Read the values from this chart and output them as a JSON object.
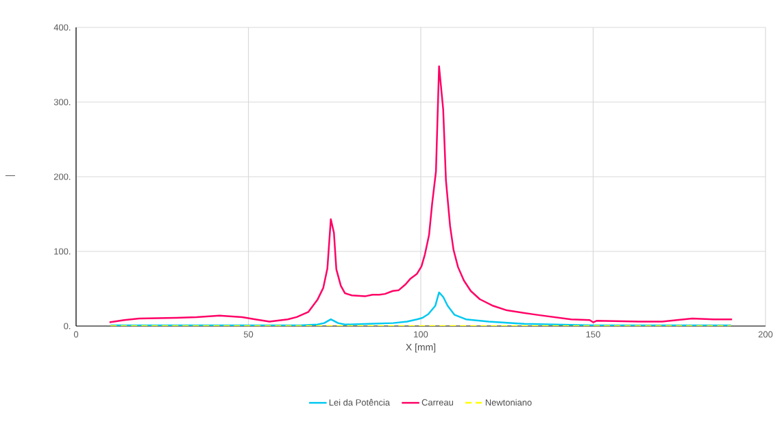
{
  "chart_data": {
    "type": "line",
    "xlabel": "X [mm]",
    "ylabel": "—",
    "xlim": [
      0,
      200
    ],
    "xticks": [
      0,
      50,
      100,
      150,
      200
    ],
    "ylim": [
      0,
      400
    ],
    "yticks": [
      {
        "value": 0,
        "label": "0."
      },
      {
        "value": 100,
        "label": "100."
      },
      {
        "value": 200,
        "label": "200."
      },
      {
        "value": 300,
        "label": "300."
      },
      {
        "value": 400,
        "label": "400."
      }
    ],
    "grid": true,
    "legend": "bottom",
    "marker": "none",
    "series": [
      {
        "name": "Lei da Potência",
        "color": "#00c8f0",
        "line_style": "solid",
        "x": [
          10,
          30,
          50,
          65,
          70,
          72,
          73.9,
          76,
          78,
          85,
          92,
          96,
          98.9,
          100.5,
          102.2,
          104.2,
          105.3,
          106.5,
          107.8,
          109.8,
          113.1,
          119.7,
          130,
          140,
          150,
          170,
          190
        ],
        "values": [
          1,
          1,
          1,
          1,
          2,
          4,
          9,
          4,
          2,
          3,
          4,
          6,
          9,
          11,
          16,
          27,
          45,
          39,
          27,
          15,
          9,
          6,
          3,
          2,
          1,
          1,
          1
        ]
      },
      {
        "name": "Carreau",
        "color": "#ff0066",
        "line_style": "solid",
        "x": [
          9.7,
          14,
          18.3,
          29,
          35,
          41.6,
          48.2,
          52,
          56.1,
          61.4,
          64,
          67.4,
          70,
          71.7,
          72.9,
          73.9,
          74.8,
          75.5,
          76.8,
          78,
          80,
          84,
          86,
          88,
          89.6,
          91.9,
          93.6,
          95.6,
          96.9,
          98.9,
          100.2,
          101.2,
          102.4,
          103.3,
          104.4,
          105.3,
          106.5,
          107.3,
          108.5,
          109.5,
          110.8,
          112.5,
          114.5,
          117.1,
          121,
          125,
          133.7,
          143.6,
          149,
          150,
          151,
          163.5,
          170,
          178.7,
          185,
          190.3
        ],
        "values": [
          5,
          8,
          10,
          11,
          12,
          14,
          12,
          9,
          6,
          9,
          12,
          19,
          35,
          51,
          77,
          143,
          125,
          76,
          54,
          44,
          41,
          40,
          42,
          42,
          43,
          47,
          48,
          56,
          63,
          70,
          80,
          96,
          122,
          164,
          207,
          348,
          290,
          195,
          134,
          102,
          79,
          61,
          47,
          36,
          27,
          21,
          15,
          9,
          8,
          5,
          7,
          6,
          6,
          10,
          9,
          9
        ]
      },
      {
        "name": "Newtoniano",
        "color": "#ffff00",
        "line_style": "dashed",
        "x": [
          10,
          190
        ],
        "values": [
          0,
          0
        ]
      }
    ]
  }
}
